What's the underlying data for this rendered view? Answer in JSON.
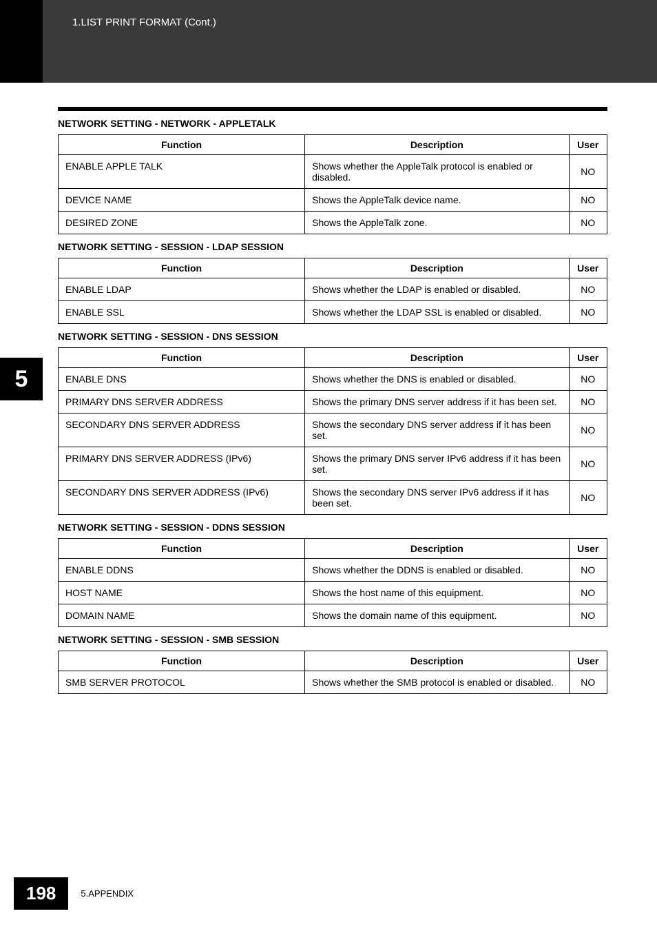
{
  "header": {
    "breadcrumb": "1.LIST PRINT FORMAT (Cont.)"
  },
  "chapter_tab": "5",
  "sections": {
    "appletalk": {
      "title": "NETWORK SETTING - NETWORK - APPLETALK",
      "th_func": "Function",
      "th_desc": "Description",
      "th_user": "User",
      "rows": [
        {
          "func": "ENABLE APPLE TALK",
          "desc": "Shows whether the AppleTalk protocol is enabled or disabled.",
          "user": "NO"
        },
        {
          "func": "DEVICE NAME",
          "desc": "Shows the AppleTalk device name.",
          "user": "NO"
        },
        {
          "func": "DESIRED ZONE",
          "desc": "Shows the AppleTalk zone.",
          "user": "NO"
        }
      ]
    },
    "ldap": {
      "title": "NETWORK SETTING - SESSION - LDAP SESSION",
      "th_func": "Function",
      "th_desc": "Description",
      "th_user": "User",
      "rows": [
        {
          "func": "ENABLE LDAP",
          "desc": "Shows whether the LDAP is enabled or disabled.",
          "user": "NO"
        },
        {
          "func": "ENABLE SSL",
          "desc": "Shows whether the LDAP SSL is enabled or disabled.",
          "user": "NO"
        }
      ]
    },
    "dns": {
      "title": "NETWORK SETTING - SESSION - DNS SESSION",
      "th_func": "Function",
      "th_desc": "Description",
      "th_user": "User",
      "rows": [
        {
          "func": "ENABLE DNS",
          "desc": "Shows whether the DNS is enabled or disabled.",
          "user": "NO"
        },
        {
          "func": "PRIMARY DNS SERVER ADDRESS",
          "desc": "Shows the primary DNS server address if it has been set.",
          "user": "NO"
        },
        {
          "func": "SECONDARY DNS SERVER ADDRESS",
          "desc": "Shows the secondary DNS server address if it has been set.",
          "user": "NO"
        },
        {
          "func": "PRIMARY DNS SERVER ADDRESS (IPv6)",
          "desc": "Shows the primary DNS server IPv6 address if it has been set.",
          "user": "NO"
        },
        {
          "func": "SECONDARY DNS SERVER ADDRESS (IPv6)",
          "desc": "Shows the secondary DNS server IPv6 address if it has been set.",
          "user": "NO"
        }
      ]
    },
    "ddns": {
      "title": "NETWORK SETTING - SESSION - DDNS SESSION",
      "th_func": "Function",
      "th_desc": "Description",
      "th_user": "User",
      "rows": [
        {
          "func": "ENABLE DDNS",
          "desc": "Shows whether the DDNS is enabled or disabled.",
          "user": "NO"
        },
        {
          "func": "HOST NAME",
          "desc": "Shows the host name of this equipment.",
          "user": "NO"
        },
        {
          "func": "DOMAIN NAME",
          "desc": "Shows the domain name of this equipment.",
          "user": "NO"
        }
      ]
    },
    "smb": {
      "title": "NETWORK SETTING - SESSION - SMB SESSION",
      "th_func": "Function",
      "th_desc": "Description",
      "th_user": "User",
      "rows": [
        {
          "func": "SMB SERVER PROTOCOL",
          "desc": "Shows whether the SMB protocol is enabled or disabled.",
          "user": "NO"
        }
      ]
    }
  },
  "footer": {
    "page": "198",
    "label": "5.APPENDIX"
  }
}
